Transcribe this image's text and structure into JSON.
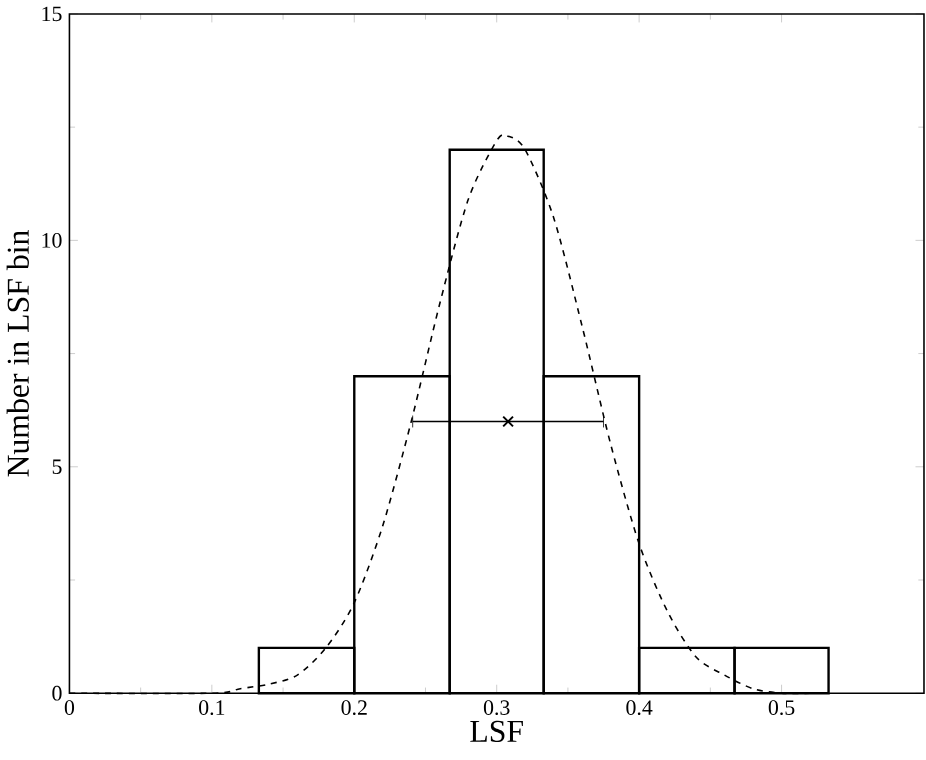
{
  "chart_data": {
    "type": "histogram",
    "xlabel": "LSF",
    "ylabel": "Number in LSF bin",
    "xlim": [
      0,
      0.6
    ],
    "ylim": [
      0,
      15
    ],
    "xticks": [
      0,
      0.1,
      0.2,
      0.3,
      0.4,
      0.5
    ],
    "yticks": [
      0,
      5,
      10,
      15
    ],
    "series": [
      {
        "color": "#000000",
        "bins": [
          0.133,
          0.2,
          0.267,
          0.333,
          0.4,
          0.467,
          0.533
        ],
        "values": [
          1,
          7,
          12,
          7,
          1,
          1
        ]
      },
      {
        "type": "line",
        "color": "#000000",
        "line_style": "dashed",
        "marker": "none",
        "x": [
          0,
          0.1,
          0.12,
          0.14,
          0.16,
          0.18,
          0.2,
          0.22,
          0.24,
          0.26,
          0.28,
          0.3,
          0.308,
          0.32,
          0.34,
          0.36,
          0.38,
          0.4,
          0.42,
          0.44,
          0.46,
          0.48,
          0.5,
          0.52
        ],
        "values": [
          0,
          0.0,
          0.1,
          0.2,
          0.4,
          1.0,
          2.0,
          3.7,
          6.0,
          8.6,
          10.9,
          12.2,
          12.3,
          12.0,
          10.5,
          8.1,
          5.5,
          3.3,
          1.8,
          0.8,
          0.4,
          0.1,
          0.0,
          0
        ]
      },
      {
        "type": "scatter",
        "color": "#000000",
        "marker": "cross",
        "x": [
          0.308
        ],
        "values": [
          6
        ],
        "xerrors": [
          0.067
        ]
      }
    ]
  }
}
